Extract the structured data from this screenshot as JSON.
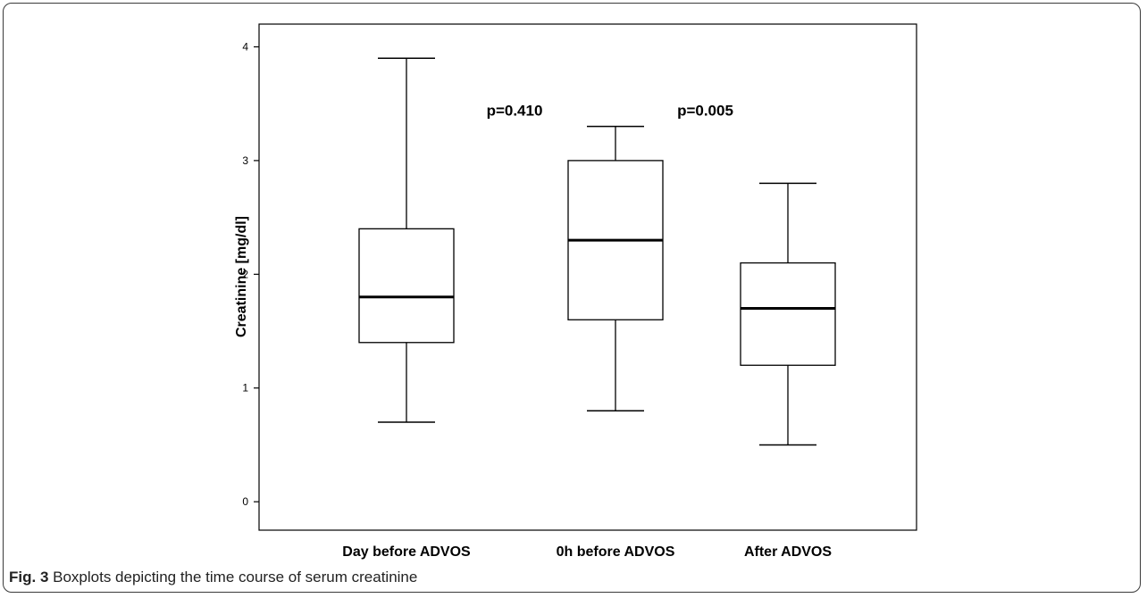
{
  "figure": {
    "caption_label": "Fig. 3",
    "caption_text": " Boxplots depicting the time course of serum creatinine"
  },
  "chart_data": {
    "type": "boxplot",
    "ylabel": "Creatinine [mg/dl]",
    "xlabel": "",
    "ylim": [
      -0.25,
      4.2
    ],
    "yticks": [
      0,
      1,
      2,
      3,
      4
    ],
    "grid": false,
    "categories": [
      "Day before ADVOS",
      "0h before ADVOS",
      "After ADVOS"
    ],
    "boxes": [
      {
        "category": "Day before ADVOS",
        "min": 0.7,
        "q1": 1.4,
        "median": 1.8,
        "q3": 2.4,
        "max": 3.9
      },
      {
        "category": "0h before ADVOS",
        "min": 0.8,
        "q1": 1.6,
        "median": 2.3,
        "q3": 3.0,
        "max": 3.3
      },
      {
        "category": "After ADVOS",
        "min": 0.5,
        "q1": 1.2,
        "median": 1.7,
        "q3": 2.1,
        "max": 2.8
      }
    ],
    "annotations": [
      {
        "text": "p=0.410",
        "between": [
          0,
          1
        ],
        "y": 3.45
      },
      {
        "text": "p=0.005",
        "between": [
          1,
          2
        ],
        "y": 3.45
      }
    ]
  }
}
